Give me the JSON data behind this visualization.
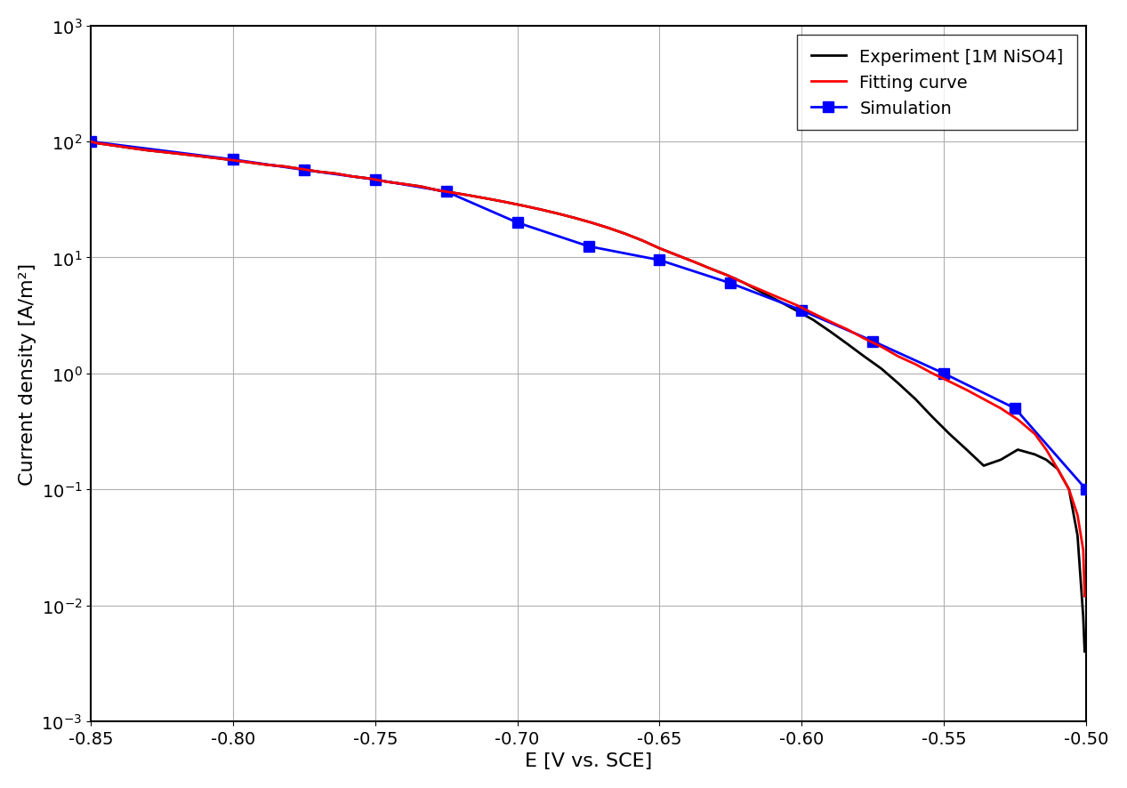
{
  "xlabel": "E [V vs. SCE]",
  "ylabel": "Current density [A/m²]",
  "xlim": [
    -0.85,
    -0.5
  ],
  "ylim_log": [
    -3,
    3
  ],
  "xticks": [
    -0.85,
    -0.8,
    -0.75,
    -0.7,
    -0.65,
    -0.6,
    -0.55,
    -0.5
  ],
  "background_color": "#ffffff",
  "grid_color": "#b0b0b0",
  "experiment_color": "#000000",
  "fitting_color": "#ff0000",
  "simulation_color": "#0000ff",
  "legend_labels": [
    "Experiment [1M NiSO4]",
    "Fitting curve",
    "Simulation"
  ],
  "experiment_x": [
    -0.85,
    -0.848,
    -0.844,
    -0.84,
    -0.836,
    -0.83,
    -0.824,
    -0.818,
    -0.812,
    -0.806,
    -0.8,
    -0.794,
    -0.788,
    -0.782,
    -0.776,
    -0.77,
    -0.764,
    -0.758,
    -0.752,
    -0.746,
    -0.74,
    -0.734,
    -0.728,
    -0.722,
    -0.716,
    -0.71,
    -0.704,
    -0.698,
    -0.692,
    -0.686,
    -0.68,
    -0.674,
    -0.668,
    -0.662,
    -0.656,
    -0.65,
    -0.644,
    -0.638,
    -0.632,
    -0.626,
    -0.62,
    -0.614,
    -0.608,
    -0.602,
    -0.596,
    -0.59,
    -0.584,
    -0.578,
    -0.572,
    -0.566,
    -0.56,
    -0.554,
    -0.548,
    -0.542,
    -0.536,
    -0.53,
    -0.524,
    -0.518,
    -0.514,
    -0.51,
    -0.506,
    -0.503,
    -0.501,
    -0.5005
  ],
  "experiment_y": [
    100,
    97,
    94,
    91,
    88,
    84,
    81,
    78,
    75,
    72,
    69,
    66,
    63,
    61,
    58,
    55,
    53,
    50,
    48,
    45,
    43,
    41,
    38,
    36,
    34,
    32,
    30,
    28,
    26,
    24,
    22,
    20,
    18,
    16,
    14,
    12,
    10.5,
    9.2,
    8.0,
    7.0,
    6.0,
    5.0,
    4.2,
    3.5,
    2.9,
    2.3,
    1.8,
    1.4,
    1.1,
    0.82,
    0.6,
    0.42,
    0.3,
    0.22,
    0.16,
    0.18,
    0.22,
    0.2,
    0.18,
    0.15,
    0.1,
    0.04,
    0.008,
    0.004
  ],
  "fitting_x": [
    -0.85,
    -0.848,
    -0.844,
    -0.84,
    -0.836,
    -0.83,
    -0.824,
    -0.818,
    -0.812,
    -0.806,
    -0.8,
    -0.794,
    -0.788,
    -0.782,
    -0.776,
    -0.77,
    -0.764,
    -0.758,
    -0.752,
    -0.746,
    -0.74,
    -0.734,
    -0.728,
    -0.722,
    -0.716,
    -0.71,
    -0.704,
    -0.698,
    -0.692,
    -0.686,
    -0.68,
    -0.674,
    -0.668,
    -0.662,
    -0.656,
    -0.65,
    -0.644,
    -0.638,
    -0.632,
    -0.626,
    -0.62,
    -0.614,
    -0.608,
    -0.602,
    -0.596,
    -0.59,
    -0.584,
    -0.578,
    -0.572,
    -0.566,
    -0.56,
    -0.554,
    -0.548,
    -0.542,
    -0.536,
    -0.53,
    -0.524,
    -0.518,
    -0.514,
    -0.51,
    -0.506,
    -0.503,
    -0.501,
    -0.5005
  ],
  "fitting_y": [
    100,
    97,
    94,
    91,
    88,
    84,
    81,
    78,
    75,
    72,
    69,
    66,
    63,
    61,
    58,
    55,
    53,
    50,
    48,
    45,
    43,
    41,
    38,
    36,
    34,
    32,
    30,
    28,
    26,
    24,
    22,
    20,
    18,
    16,
    14,
    12,
    10.5,
    9.2,
    8.0,
    7.0,
    6.0,
    5.2,
    4.5,
    3.9,
    3.3,
    2.8,
    2.4,
    2.0,
    1.7,
    1.4,
    1.2,
    1.0,
    0.85,
    0.72,
    0.6,
    0.5,
    0.4,
    0.3,
    0.22,
    0.15,
    0.1,
    0.06,
    0.03,
    0.012
  ],
  "simulation_x": [
    -0.85,
    -0.8,
    -0.775,
    -0.75,
    -0.725,
    -0.7,
    -0.675,
    -0.65,
    -0.625,
    -0.6,
    -0.575,
    -0.55,
    -0.525,
    -0.5
  ],
  "simulation_y": [
    100,
    70,
    57,
    47,
    37,
    20,
    12.5,
    9.5,
    6.0,
    3.5,
    1.9,
    1.0,
    0.5,
    0.1
  ]
}
